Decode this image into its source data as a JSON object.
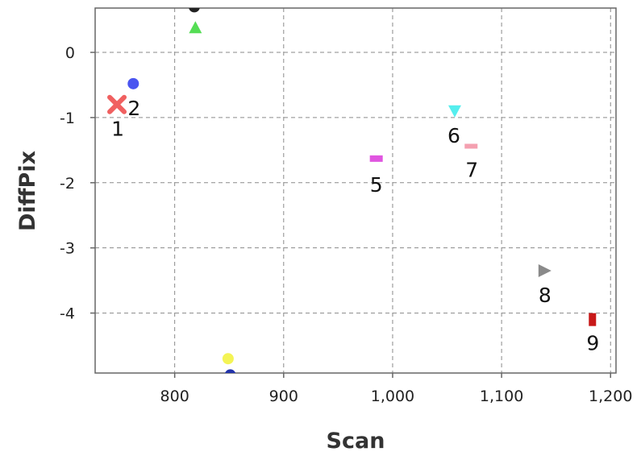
{
  "chart_data": {
    "type": "scatter",
    "title": "",
    "xlabel": "Scan",
    "ylabel": "DiffPix",
    "xlim": [
      727,
      1205
    ],
    "ylim": [
      -4.92,
      0.68
    ],
    "xticks": [
      800,
      900,
      1000,
      1100,
      1200
    ],
    "xtick_labels": [
      "800",
      "900",
      "1,000",
      "1,100",
      "1,200"
    ],
    "yticks": [
      0,
      -1,
      -2,
      -3,
      -4
    ],
    "ytick_labels": [
      "0",
      "-1",
      "-2",
      "-3",
      "-4"
    ],
    "grid": true,
    "legend": "none",
    "points": [
      {
        "label": "1",
        "x": 747,
        "y": -0.8,
        "marker": "x",
        "color": "#f06060"
      },
      {
        "label": "2",
        "x": 762,
        "y": -0.48,
        "marker": "circle",
        "color": "#4a55f0"
      },
      {
        "label": "",
        "x": 819,
        "y": 0.38,
        "marker": "triangle-up",
        "color": "#55dd55"
      },
      {
        "label": "",
        "x": 818,
        "y": 0.7,
        "marker": "circle",
        "color": "#222222"
      },
      {
        "label": "5",
        "x": 985,
        "y": -1.63,
        "marker": "square",
        "color": "#e055e0"
      },
      {
        "label": "6",
        "x": 1057,
        "y": -0.9,
        "marker": "triangle-down",
        "color": "#55eeee"
      },
      {
        "label": "7",
        "x": 1072,
        "y": -1.44,
        "marker": "dash",
        "color": "#f4a0b0"
      },
      {
        "label": "8",
        "x": 1139,
        "y": -3.35,
        "marker": "triangle-right",
        "color": "#8a8a8a"
      },
      {
        "label": "9",
        "x": 1183,
        "y": -4.1,
        "marker": "rect",
        "color": "#c81818"
      },
      {
        "label": "",
        "x": 849,
        "y": -4.7,
        "marker": "circle",
        "color": "#f4f455"
      },
      {
        "label": "",
        "x": 851,
        "y": -4.95,
        "marker": "circle",
        "color": "#2233aa"
      }
    ]
  }
}
